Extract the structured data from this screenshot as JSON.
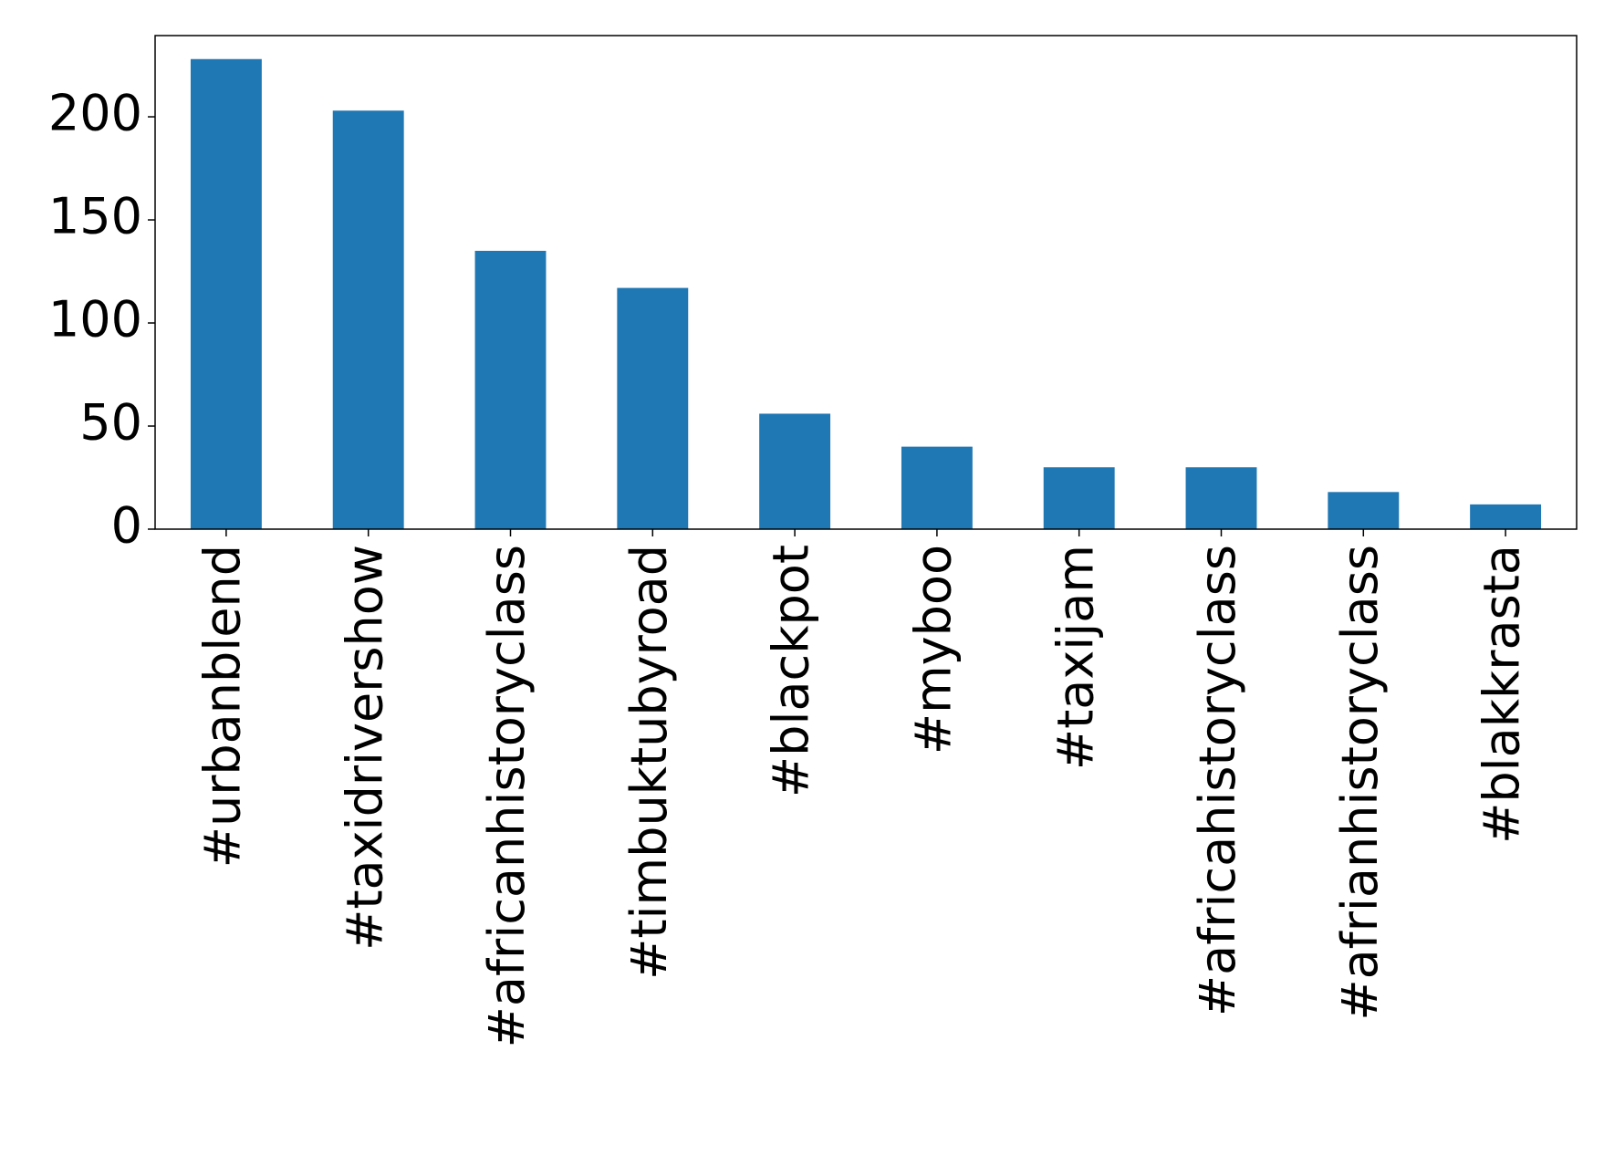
{
  "chart_data": {
    "type": "bar",
    "categories": [
      "#urbanblend",
      "#taxidrivershow",
      "#africanhistoryclass",
      "#timbuktubyroad",
      "#blackpot",
      "#myboo",
      "#taxijam",
      "#africahistoryclass",
      "#afrianhistoryclass",
      "#blakkrasta"
    ],
    "values": [
      228,
      203,
      135,
      117,
      56,
      40,
      30,
      30,
      18,
      12
    ],
    "color": "#1f77b4",
    "ylim": [
      0,
      239.4
    ],
    "yticks": [
      0,
      50,
      100,
      150,
      200
    ],
    "grid": false
  }
}
